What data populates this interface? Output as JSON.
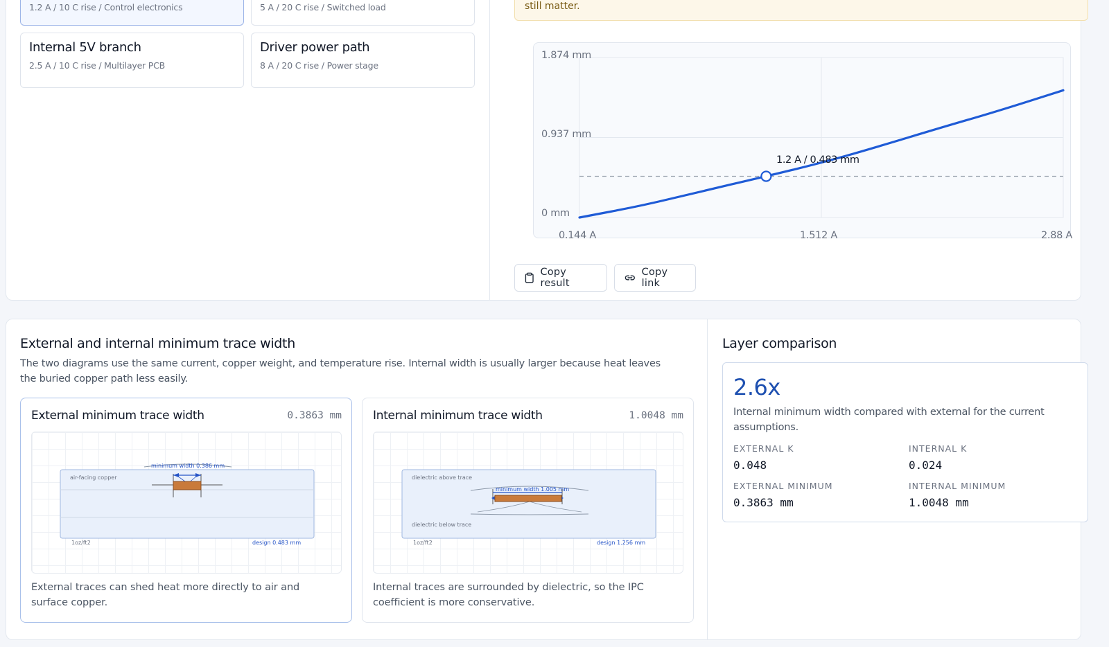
{
  "presets": [
    {
      "title": "",
      "sub": "1.2 A / 10 C rise / Control electronics",
      "active": true
    },
    {
      "title": "",
      "sub": "5 A / 20 C rise / Switched load",
      "active": false
    },
    {
      "title": "Internal 5V branch",
      "sub": "2.5 A / 10 C rise / Multilayer PCB",
      "active": false
    },
    {
      "title": "Driver power path",
      "sub": "8 A / 20 C rise / Power stage",
      "active": false
    }
  ],
  "notice": {
    "text": "still matter."
  },
  "chart_data": {
    "type": "line",
    "x": [
      0.144,
      0.5,
      0.8,
      1.2,
      1.512,
      1.8,
      2.2,
      2.5,
      2.88
    ],
    "series": [
      {
        "values": [
          0.0,
          0.14,
          0.29,
          0.483,
          0.64,
          0.81,
          1.06,
          1.24,
          1.49
        ]
      }
    ],
    "xlim": [
      0.144,
      2.88
    ],
    "ylim": [
      0,
      1.874
    ],
    "x_ticks": [
      "0.144 A",
      "1.512 A",
      "2.88 A"
    ],
    "y_ticks": [
      "1.874 mm",
      "0.937 mm",
      "0 mm"
    ],
    "y_tick_values": [
      1.874,
      0.937,
      0
    ],
    "marker": {
      "x": 1.2,
      "y": 0.483,
      "label": "1.2 A / 0.483 mm"
    },
    "grid": true,
    "line_color": "#1f5bd6"
  },
  "actions": {
    "copy_result": "Copy result",
    "copy_link": "Copy link"
  },
  "widths": {
    "title": "External and internal minimum trace width",
    "desc": "The two diagrams use the same current, copper weight, and temperature rise. Internal width is usually larger because heat leaves the buried copper path less easily.",
    "external": {
      "title": "External minimum trace width",
      "value": "0.3863 mm",
      "min_label": "minimum width 0.386 mm",
      "region_label": "air-facing copper",
      "copper": "1oz/ft2",
      "design": "design 0.483 mm",
      "note": "External traces can shed heat more directly to air and surface copper."
    },
    "internal": {
      "title": "Internal minimum trace width",
      "value": "1.0048 mm",
      "min_label": "minimum width 1.005 mm",
      "above_label": "dielectric above trace",
      "below_label": "dielectric below trace",
      "copper": "1oz/ft2",
      "design": "design 1.256 mm",
      "note": "Internal traces are surrounded by dielectric, so the IPC coefficient is more conservative."
    }
  },
  "comparison": {
    "title": "Layer comparison",
    "ratio": "2.6x",
    "ratio_desc": "Internal minimum width compared with external for the current assumptions.",
    "ext_k_label": "EXTERNAL K",
    "ext_k": "0.048",
    "int_k_label": "INTERNAL K",
    "int_k": "0.024",
    "ext_min_label": "EXTERNAL MINIMUM",
    "ext_min": "0.3863 mm",
    "int_min_label": "INTERNAL MINIMUM",
    "int_min": "1.0048 mm"
  },
  "icons": {
    "copy_result": "clipboard-icon",
    "copy_link": "link-icon"
  },
  "colors": {
    "accent": "#1f5bd6",
    "copper": "#c97a3a"
  }
}
